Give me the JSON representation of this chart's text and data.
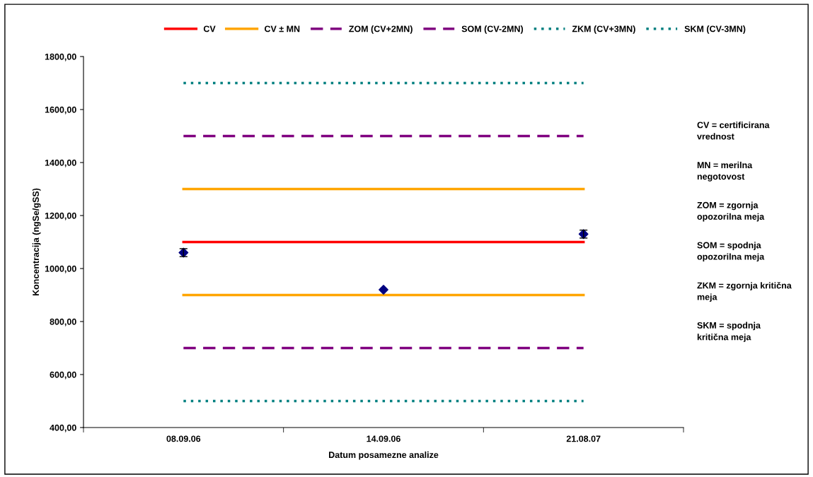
{
  "chart_data": {
    "type": "line",
    "xlabel": "Datum posamezne analize",
    "ylabel": "Koncentracija (ngSe/gSS)",
    "categories": [
      "08.09.06",
      "14.09.06",
      "21.08.07"
    ],
    "ylim": [
      400,
      1800
    ],
    "yticks": [
      {
        "value": 400,
        "label": "400,00"
      },
      {
        "value": 600,
        "label": "600,00"
      },
      {
        "value": 800,
        "label": "800,00"
      },
      {
        "value": 1000,
        "label": "1000,00"
      },
      {
        "value": 1200,
        "label": "1200,00"
      },
      {
        "value": 1400,
        "label": "1400,00"
      },
      {
        "value": 1600,
        "label": "1600,00"
      },
      {
        "value": 1800,
        "label": "1800,00"
      }
    ],
    "grid": false,
    "legend": "top",
    "marker": "none",
    "series": [
      {
        "name": "CV",
        "color": "#ff0000",
        "values": [
          1100,
          1100,
          1100
        ],
        "line_style": "solid"
      },
      {
        "name": "CV ± MN",
        "color": "#ffa500",
        "values": [
          1300,
          1300,
          1300
        ],
        "line_style": "solid"
      },
      {
        "color": "#ffa500",
        "values": [
          900,
          900,
          900
        ],
        "line_style": "solid"
      },
      {
        "name": "ZOM (CV+2MN)",
        "color": "#800080",
        "values": [
          1500,
          1500,
          1500
        ],
        "line_style": "dashed"
      },
      {
        "name": "SOM (CV-2MN)",
        "color": "#800080",
        "values": [
          700,
          700,
          700
        ],
        "line_style": "dashed"
      },
      {
        "name": "ZKM (CV+3MN)",
        "color": "#008080",
        "values": [
          1700,
          1700,
          1700
        ],
        "line_style": "dotted"
      },
      {
        "name": "SKM (CV-3MN)",
        "color": "#008080",
        "values": [
          500,
          500,
          500
        ],
        "line_style": "dotted"
      },
      {
        "type": "scatter",
        "marker": "diamond",
        "color": "#000080",
        "values": [
          1060,
          920,
          1130
        ],
        "errors": [
          15,
          null,
          15
        ]
      }
    ],
    "annotations": [
      "CV = certificirana\nvrednost",
      "MN = merilna\nnegotovost",
      "ZOM = zgornja\nopozorilna meja",
      "SOM = spodnja\nopozorilna meja",
      "ZKM = zgornja kritična\nmeja",
      "SKM = spodnja\nkritična meja"
    ]
  }
}
